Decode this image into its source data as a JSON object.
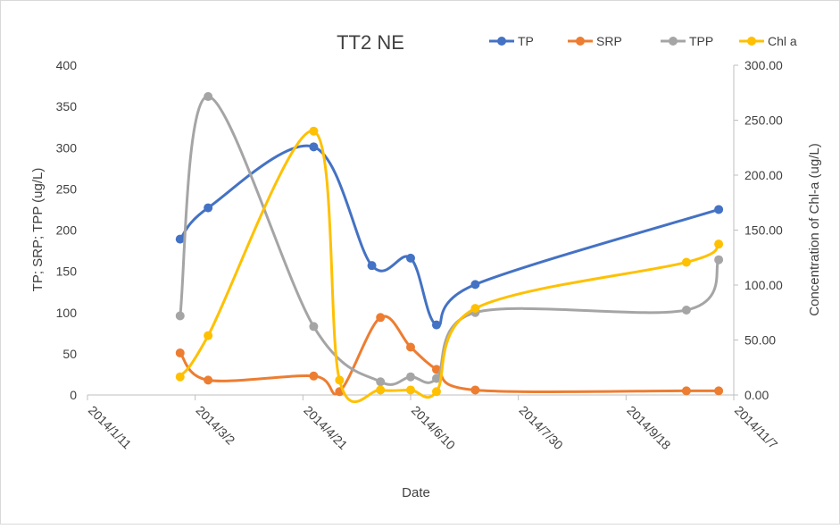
{
  "chart_data": {
    "type": "line",
    "title": "TT2 NE",
    "xlabel": "Date",
    "ylabel": "TP; SRP; TPP (ug/L)",
    "y2label": "Concentration of Chl-a (ug/L)",
    "x_ticks": [
      "2014/1/11",
      "2014/3/2",
      "2014/4/21",
      "2014/6/10",
      "2014/7/30",
      "2014/9/18",
      "2014/11/7"
    ],
    "xlim": [
      "2014/1/11",
      "2014/11/7"
    ],
    "ylim": [
      0,
      400
    ],
    "y_ticks": [
      "0",
      "50",
      "100",
      "150",
      "200",
      "250",
      "300",
      "350",
      "400"
    ],
    "y2lim": [
      0,
      300
    ],
    "y2_ticks": [
      "0.00",
      "50.00",
      "100.00",
      "150.00",
      "200.00",
      "250.00",
      "300.00"
    ],
    "grid": false,
    "smooth": true,
    "legend_position": "top-right",
    "series": [
      {
        "name": "TP",
        "axis": "left",
        "color": "#4472C4",
        "x": [
          "2014/2/23",
          "2014/3/8",
          "2014/4/26",
          "2014/5/23",
          "2014/6/10",
          "2014/6/22",
          "2014/7/10",
          "2014/10/16",
          "2014/10/31"
        ],
        "values": [
          189,
          227,
          301,
          157,
          166,
          85,
          134,
          null,
          225
        ]
      },
      {
        "name": "SRP",
        "axis": "left",
        "color": "#ED7D31",
        "x": [
          "2014/2/23",
          "2014/3/8",
          "2014/4/26",
          "2014/5/8",
          "2014/5/27",
          "2014/6/10",
          "2014/6/22",
          "2014/7/10",
          "2014/10/16",
          "2014/10/31"
        ],
        "values": [
          51,
          18,
          23,
          4,
          94,
          58,
          31,
          6,
          5,
          5
        ]
      },
      {
        "name": "TPP",
        "axis": "left",
        "color": "#A5A5A5",
        "x": [
          "2014/2/23",
          "2014/3/8",
          "2014/4/26",
          "2014/5/27",
          "2014/6/10",
          "2014/6/22",
          "2014/7/10",
          "2014/10/16",
          "2014/10/31"
        ],
        "values": [
          96,
          362,
          83,
          16,
          22,
          20,
          100,
          103,
          164
        ]
      },
      {
        "name": "Chl a",
        "axis": "right",
        "color": "#FFC000",
        "x": [
          "2014/2/23",
          "2014/3/8",
          "2014/4/26",
          "2014/5/8",
          "2014/5/27",
          "2014/6/10",
          "2014/6/22",
          "2014/7/10",
          "2014/10/16",
          "2014/10/31"
        ],
        "values": [
          16.5,
          54,
          240,
          13.5,
          4.5,
          4.5,
          3,
          78.75,
          120.75,
          137.25
        ]
      }
    ]
  }
}
